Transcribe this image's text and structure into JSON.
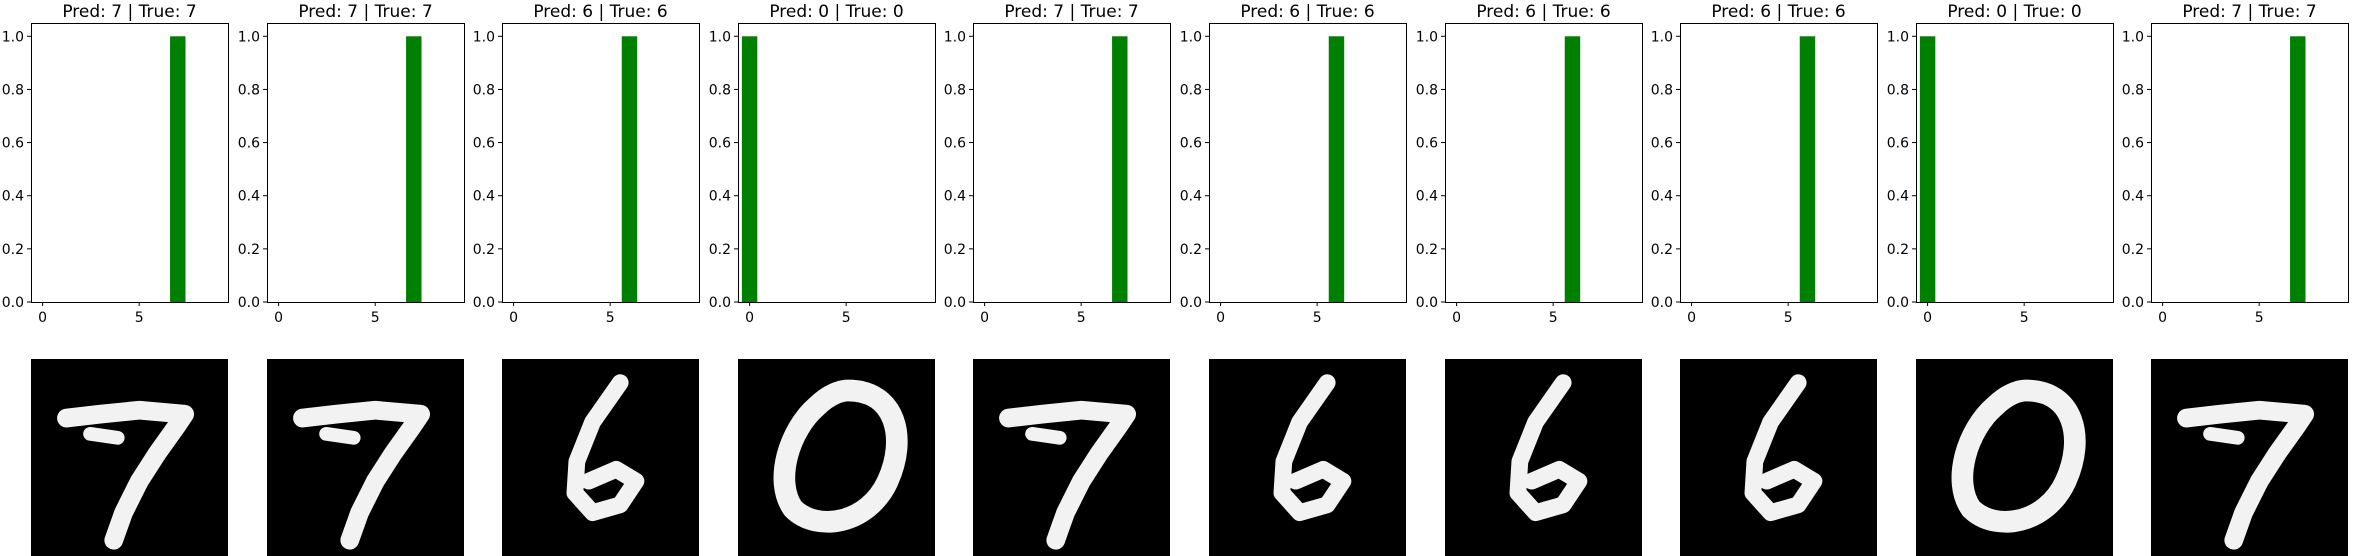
{
  "chart_data": [
    {
      "type": "bar",
      "title": "Pred: 7 | True: 7",
      "categories": [
        0,
        1,
        2,
        3,
        4,
        5,
        6,
        7,
        8,
        9
      ],
      "values": [
        0,
        0,
        0,
        0,
        0,
        0,
        0,
        1,
        0,
        0
      ],
      "xticks": [
        "0",
        "5"
      ],
      "yticks": [
        "0.0",
        "0.2",
        "0.4",
        "0.6",
        "0.8",
        "1.0"
      ],
      "ylim": [
        0,
        1.05
      ],
      "xlim": [
        -0.6,
        9.6
      ],
      "bar_color": "#008000",
      "image_digit": "7"
    },
    {
      "type": "bar",
      "title": "Pred: 7 | True: 7",
      "categories": [
        0,
        1,
        2,
        3,
        4,
        5,
        6,
        7,
        8,
        9
      ],
      "values": [
        0,
        0,
        0,
        0,
        0,
        0,
        0,
        1,
        0,
        0
      ],
      "xticks": [
        "0",
        "5"
      ],
      "yticks": [
        "0.0",
        "0.2",
        "0.4",
        "0.6",
        "0.8",
        "1.0"
      ],
      "ylim": [
        0,
        1.05
      ],
      "xlim": [
        -0.6,
        9.6
      ],
      "bar_color": "#008000",
      "image_digit": "7"
    },
    {
      "type": "bar",
      "title": "Pred: 6 | True: 6",
      "categories": [
        0,
        1,
        2,
        3,
        4,
        5,
        6,
        7,
        8,
        9
      ],
      "values": [
        0,
        0,
        0,
        0,
        0,
        0,
        1,
        0,
        0,
        0
      ],
      "xticks": [
        "0",
        "5"
      ],
      "yticks": [
        "0.0",
        "0.2",
        "0.4",
        "0.6",
        "0.8",
        "1.0"
      ],
      "ylim": [
        0,
        1.05
      ],
      "xlim": [
        -0.6,
        9.6
      ],
      "bar_color": "#008000",
      "image_digit": "6"
    },
    {
      "type": "bar",
      "title": "Pred: 0 | True: 0",
      "categories": [
        0,
        1,
        2,
        3,
        4,
        5,
        6,
        7,
        8,
        9
      ],
      "values": [
        1,
        0,
        0,
        0,
        0,
        0,
        0,
        0,
        0,
        0
      ],
      "xticks": [
        "0",
        "5"
      ],
      "yticks": [
        "0.0",
        "0.2",
        "0.4",
        "0.6",
        "0.8",
        "1.0"
      ],
      "ylim": [
        0,
        1.05
      ],
      "xlim": [
        -0.6,
        9.6
      ],
      "bar_color": "#008000",
      "image_digit": "0"
    },
    {
      "type": "bar",
      "title": "Pred: 7 | True: 7",
      "categories": [
        0,
        1,
        2,
        3,
        4,
        5,
        6,
        7,
        8,
        9
      ],
      "values": [
        0,
        0,
        0,
        0,
        0,
        0,
        0,
        1,
        0,
        0
      ],
      "xticks": [
        "0",
        "5"
      ],
      "yticks": [
        "0.0",
        "0.2",
        "0.4",
        "0.6",
        "0.8",
        "1.0"
      ],
      "ylim": [
        0,
        1.05
      ],
      "xlim": [
        -0.6,
        9.6
      ],
      "bar_color": "#008000",
      "image_digit": "7"
    },
    {
      "type": "bar",
      "title": "Pred: 6 | True: 6",
      "categories": [
        0,
        1,
        2,
        3,
        4,
        5,
        6,
        7,
        8,
        9
      ],
      "values": [
        0,
        0,
        0,
        0,
        0,
        0,
        1,
        0,
        0,
        0
      ],
      "xticks": [
        "0",
        "5"
      ],
      "yticks": [
        "0.0",
        "0.2",
        "0.4",
        "0.6",
        "0.8",
        "1.0"
      ],
      "ylim": [
        0,
        1.05
      ],
      "xlim": [
        -0.6,
        9.6
      ],
      "bar_color": "#008000",
      "image_digit": "6"
    },
    {
      "type": "bar",
      "title": "Pred: 6 | True: 6",
      "categories": [
        0,
        1,
        2,
        3,
        4,
        5,
        6,
        7,
        8,
        9
      ],
      "values": [
        0,
        0,
        0,
        0,
        0,
        0,
        1,
        0,
        0,
        0
      ],
      "xticks": [
        "0",
        "5"
      ],
      "yticks": [
        "0.0",
        "0.2",
        "0.4",
        "0.6",
        "0.8",
        "1.0"
      ],
      "ylim": [
        0,
        1.05
      ],
      "xlim": [
        -0.6,
        9.6
      ],
      "bar_color": "#008000",
      "image_digit": "6"
    },
    {
      "type": "bar",
      "title": "Pred: 6 | True: 6",
      "categories": [
        0,
        1,
        2,
        3,
        4,
        5,
        6,
        7,
        8,
        9
      ],
      "values": [
        0,
        0,
        0,
        0,
        0,
        0,
        1,
        0,
        0,
        0
      ],
      "xticks": [
        "0",
        "5"
      ],
      "yticks": [
        "0.0",
        "0.2",
        "0.4",
        "0.6",
        "0.8",
        "1.0"
      ],
      "ylim": [
        0,
        1.05
      ],
      "xlim": [
        -0.6,
        9.6
      ],
      "bar_color": "#008000",
      "image_digit": "6"
    },
    {
      "type": "bar",
      "title": "Pred: 0 | True: 0",
      "categories": [
        0,
        1,
        2,
        3,
        4,
        5,
        6,
        7,
        8,
        9
      ],
      "values": [
        1,
        0,
        0,
        0,
        0,
        0,
        0,
        0,
        0,
        0
      ],
      "xticks": [
        "0",
        "5"
      ],
      "yticks": [
        "0.0",
        "0.2",
        "0.4",
        "0.6",
        "0.8",
        "1.0"
      ],
      "ylim": [
        0,
        1.05
      ],
      "xlim": [
        -0.6,
        9.6
      ],
      "bar_color": "#008000",
      "image_digit": "0"
    },
    {
      "type": "bar",
      "title": "Pred: 7 | True: 7",
      "categories": [
        0,
        1,
        2,
        3,
        4,
        5,
        6,
        7,
        8,
        9
      ],
      "values": [
        0,
        0,
        0,
        0,
        0,
        0,
        0,
        1,
        0,
        0
      ],
      "xticks": [
        "0",
        "5"
      ],
      "yticks": [
        "0.0",
        "0.2",
        "0.4",
        "0.6",
        "0.8",
        "1.0"
      ],
      "ylim": [
        0,
        1.05
      ],
      "xlim": [
        -0.6,
        9.6
      ],
      "bar_color": "#008000",
      "image_digit": "7"
    }
  ]
}
